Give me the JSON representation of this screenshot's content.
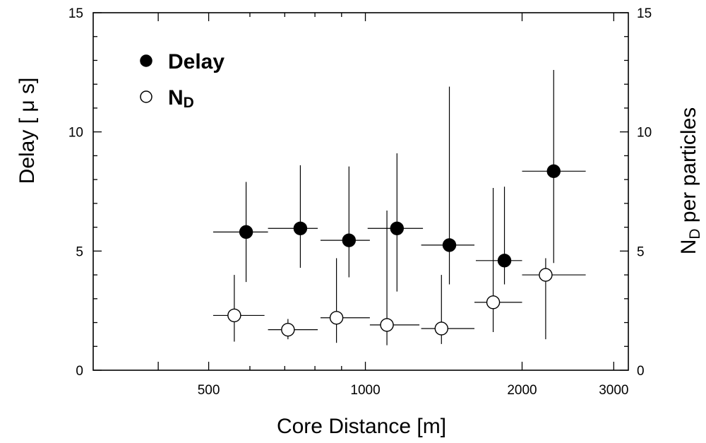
{
  "chart_data": {
    "type": "scatter",
    "xlabel": "Core Distance [m]",
    "ylabel_left": "Delay [ μ s]",
    "ylabel_right": {
      "main": "N",
      "sub": "D",
      "rest": " per particles"
    },
    "x_scale": "log",
    "xlim": [
      300,
      3200
    ],
    "ylim": [
      0,
      15
    ],
    "y2lim": [
      0,
      15
    ],
    "x_ticks": [
      500,
      1000,
      2000,
      3000
    ],
    "x_tick_labels": [
      "500",
      "1000",
      "2000",
      "3000"
    ],
    "y_ticks": [
      0,
      5,
      10,
      15
    ],
    "y_tick_labels": [
      "0",
      "5",
      "10",
      "15"
    ],
    "y2_ticks": [
      0,
      5,
      10,
      15
    ],
    "y2_tick_labels": [
      "0",
      "5",
      "10",
      "15"
    ],
    "grid": false,
    "legend_position": "top-left",
    "series": [
      {
        "name": "Delay",
        "marker": "filled-circle",
        "color": "#000000",
        "points": [
          {
            "x": 590,
            "y": 5.8,
            "xlow": 510,
            "xhigh": 650,
            "ylow": 3.7,
            "yhigh": 7.9
          },
          {
            "x": 750,
            "y": 5.95,
            "xlow": 650,
            "xhigh": 810,
            "ylow": 4.3,
            "yhigh": 8.6
          },
          {
            "x": 930,
            "y": 5.45,
            "xlow": 820,
            "xhigh": 1020,
            "ylow": 3.9,
            "yhigh": 8.55
          },
          {
            "x": 1150,
            "y": 5.95,
            "xlow": 1010,
            "xhigh": 1290,
            "ylow": 3.3,
            "yhigh": 9.1
          },
          {
            "x": 1450,
            "y": 5.25,
            "xlow": 1280,
            "xhigh": 1620,
            "ylow": 3.6,
            "yhigh": 11.9
          },
          {
            "x": 1850,
            "y": 4.6,
            "xlow": 1630,
            "xhigh": 2000,
            "ylow": 3.6,
            "yhigh": 7.7
          },
          {
            "x": 2300,
            "y": 8.35,
            "xlow": 2000,
            "xhigh": 2650,
            "ylow": 4.5,
            "yhigh": 12.6
          }
        ]
      },
      {
        "name": "N_D",
        "legend_label": {
          "main": "N",
          "sub": "D"
        },
        "marker": "open-circle",
        "color": "#000000",
        "points": [
          {
            "x": 560,
            "y": 2.3,
            "xlow": 510,
            "xhigh": 640,
            "ylow": 1.2,
            "yhigh": 4.0
          },
          {
            "x": 710,
            "y": 1.7,
            "xlow": 650,
            "xhigh": 810,
            "ylow": 1.3,
            "yhigh": 2.15
          },
          {
            "x": 880,
            "y": 2.2,
            "xlow": 820,
            "xhigh": 1020,
            "ylow": 1.15,
            "yhigh": 4.7
          },
          {
            "x": 1100,
            "y": 1.9,
            "xlow": 1020,
            "xhigh": 1270,
            "ylow": 1.05,
            "yhigh": 6.7
          },
          {
            "x": 1400,
            "y": 1.75,
            "xlow": 1280,
            "xhigh": 1620,
            "ylow": 1.1,
            "yhigh": 4.0
          },
          {
            "x": 1760,
            "y": 2.85,
            "xlow": 1620,
            "xhigh": 2000,
            "ylow": 1.6,
            "yhigh": 7.65
          },
          {
            "x": 2220,
            "y": 4.0,
            "xlow": 2000,
            "xhigh": 2650,
            "ylow": 1.3,
            "yhigh": 4.7
          }
        ]
      }
    ]
  }
}
